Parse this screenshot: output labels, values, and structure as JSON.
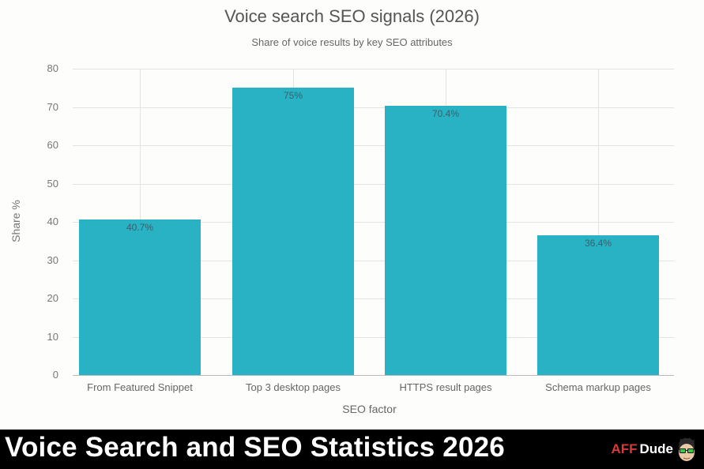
{
  "chart_data": {
    "type": "bar",
    "title": "Voice search SEO signals (2026)",
    "subtitle": "Share of voice results by key SEO attributes",
    "categories": [
      "From Featured Snippet",
      "Top 3 desktop pages",
      "HTTPS result pages",
      "Schema markup pages"
    ],
    "values": [
      40.7,
      75,
      70.4,
      36.4
    ],
    "data_labels": [
      "40.7%",
      "75%",
      "70.4%",
      "36.4%"
    ],
    "xlabel": "SEO factor",
    "ylabel": "Share %",
    "ylim": [
      0,
      80
    ],
    "yticks": [
      "0",
      "10",
      "20",
      "30",
      "40",
      "50",
      "60",
      "70",
      "80"
    ],
    "grid": true,
    "bar_color": "#29b2c4",
    "legend": null
  },
  "footer": {
    "title": "Voice Search and SEO Statistics 2026",
    "logo_part1": "AFF",
    "logo_part2": "Dude",
    "logo_accent": "#d63a3a"
  }
}
